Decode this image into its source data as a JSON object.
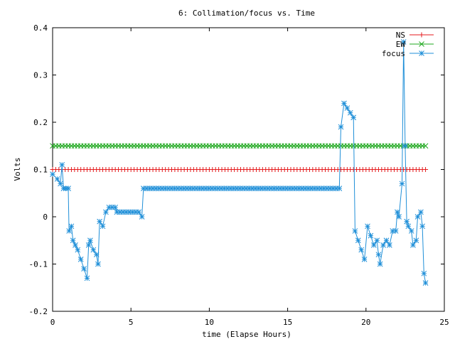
{
  "chart_data": {
    "type": "line",
    "title": "6: Collimation/focus vs. Time",
    "xlabel": "time (Elapse Hours)",
    "ylabel": "Volts",
    "xlim": [
      0,
      25
    ],
    "ylim": [
      -0.2,
      0.4
    ],
    "x_ticks": [
      0,
      5,
      10,
      15,
      20,
      25
    ],
    "y_ticks": [
      -0.2,
      -0.1,
      0,
      0.1,
      0.2,
      0.3,
      0.4
    ],
    "x_tick_labels": [
      "0",
      "5",
      "10",
      "15",
      "20",
      "25"
    ],
    "y_tick_labels": [
      "-0.2",
      "-0.1",
      "0",
      "0.1",
      "0.2",
      "0.3",
      "0.4"
    ],
    "grid": false,
    "legend_position": "top-right",
    "series": [
      {
        "name": "NS",
        "color": "#e41a1c",
        "marker": "plus",
        "points": [
          [
            0,
            0.1
          ],
          [
            23.8,
            0.1
          ]
        ]
      },
      {
        "name": "EW",
        "color": "#1fa81f",
        "marker": "cross",
        "points": [
          [
            0,
            0.15
          ],
          [
            23.8,
            0.15
          ]
        ]
      },
      {
        "name": "focus",
        "color": "#1f8fd8",
        "marker": "star",
        "points": [
          [
            0.0,
            0.09
          ],
          [
            0.3,
            0.08
          ],
          [
            0.5,
            0.07
          ],
          [
            0.6,
            0.11
          ],
          [
            0.7,
            0.06
          ],
          [
            1.0,
            0.06
          ],
          [
            1.05,
            -0.03
          ],
          [
            1.2,
            -0.02
          ],
          [
            1.3,
            -0.05
          ],
          [
            1.6,
            -0.07
          ],
          [
            1.8,
            -0.09
          ],
          [
            2.0,
            -0.11
          ],
          [
            2.2,
            -0.13
          ],
          [
            2.3,
            -0.06
          ],
          [
            2.4,
            -0.05
          ],
          [
            2.6,
            -0.07
          ],
          [
            2.8,
            -0.08
          ],
          [
            2.9,
            -0.1
          ],
          [
            3.0,
            -0.01
          ],
          [
            3.2,
            -0.02
          ],
          [
            3.4,
            0.01
          ],
          [
            3.6,
            0.02
          ],
          [
            4.0,
            0.02
          ],
          [
            4.1,
            0.01
          ],
          [
            5.5,
            0.01
          ],
          [
            5.7,
            0.0
          ],
          [
            5.8,
            0.06
          ],
          [
            18.3,
            0.06
          ],
          [
            18.4,
            0.19
          ],
          [
            18.6,
            0.24
          ],
          [
            18.8,
            0.23
          ],
          [
            19.0,
            0.22
          ],
          [
            19.2,
            0.21
          ],
          [
            19.3,
            -0.03
          ],
          [
            19.5,
            -0.05
          ],
          [
            19.7,
            -0.07
          ],
          [
            19.9,
            -0.09
          ],
          [
            20.1,
            -0.02
          ],
          [
            20.3,
            -0.04
          ],
          [
            20.5,
            -0.06
          ],
          [
            20.7,
            -0.05
          ],
          [
            20.8,
            -0.08
          ],
          [
            20.9,
            -0.1
          ],
          [
            21.1,
            -0.06
          ],
          [
            21.3,
            -0.05
          ],
          [
            21.5,
            -0.06
          ],
          [
            21.7,
            -0.03
          ],
          [
            21.9,
            -0.03
          ],
          [
            22.0,
            0.01
          ],
          [
            22.1,
            0.0
          ],
          [
            22.3,
            0.07
          ],
          [
            22.4,
            0.37
          ],
          [
            22.5,
            0.15
          ],
          [
            22.6,
            -0.01
          ],
          [
            22.7,
            -0.02
          ],
          [
            22.9,
            -0.03
          ],
          [
            23.0,
            -0.06
          ],
          [
            23.2,
            -0.05
          ],
          [
            23.3,
            0.0
          ],
          [
            23.5,
            0.01
          ],
          [
            23.6,
            -0.02
          ],
          [
            23.7,
            -0.12
          ],
          [
            23.8,
            -0.14
          ]
        ]
      }
    ]
  }
}
